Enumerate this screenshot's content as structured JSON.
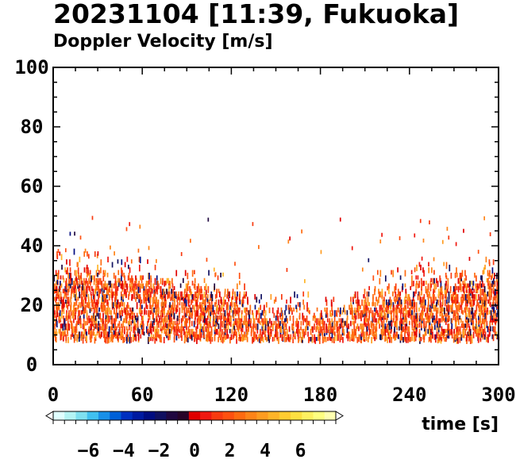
{
  "chart_data": {
    "type": "heatmap",
    "title": "20231104 [11:39, Fukuoka]",
    "subtitle": "Doppler Velocity [m/s]",
    "xlabel": "time [s]",
    "ylabel": "",
    "xlim": [
      0,
      300
    ],
    "ylim": [
      0,
      100
    ],
    "x_ticks": [
      "0",
      "60",
      "120",
      "180",
      "240",
      "300"
    ],
    "y_ticks": [
      "0",
      "20",
      "40",
      "60",
      "80",
      "100"
    ],
    "x_tick_values": [
      0,
      60,
      120,
      180,
      240,
      300
    ],
    "y_tick_values": [
      0,
      20,
      40,
      60,
      80,
      100
    ],
    "grid": false,
    "colorbar": {
      "range": [
        -8,
        8
      ],
      "tick_labels": [
        "−6",
        "−4",
        "−2",
        "0",
        "2",
        "4",
        "6"
      ],
      "tick_values": [
        -6,
        -4,
        -2,
        0,
        2,
        4,
        6
      ],
      "colors": [
        "#e0ffff",
        "#b4f4f4",
        "#7fe0f0",
        "#40c0f0",
        "#1890e8",
        "#0060d8",
        "#0030c0",
        "#001aa0",
        "#000c80",
        "#101060",
        "#200840",
        "#280428",
        "#e00000",
        "#f01810",
        "#f83a10",
        "#ff5010",
        "#ff6a10",
        "#ff8418",
        "#ff9c20",
        "#ffb428",
        "#ffcc30",
        "#ffe040",
        "#fff060",
        "#ffff80",
        "#ffffb0"
      ]
    },
    "data_summary": {
      "echo_base_height": 8,
      "echo_top_typical": [
        22,
        32
      ],
      "scattered_echo_max": 49,
      "dominant_velocity_range": [
        0,
        4
      ]
    }
  }
}
